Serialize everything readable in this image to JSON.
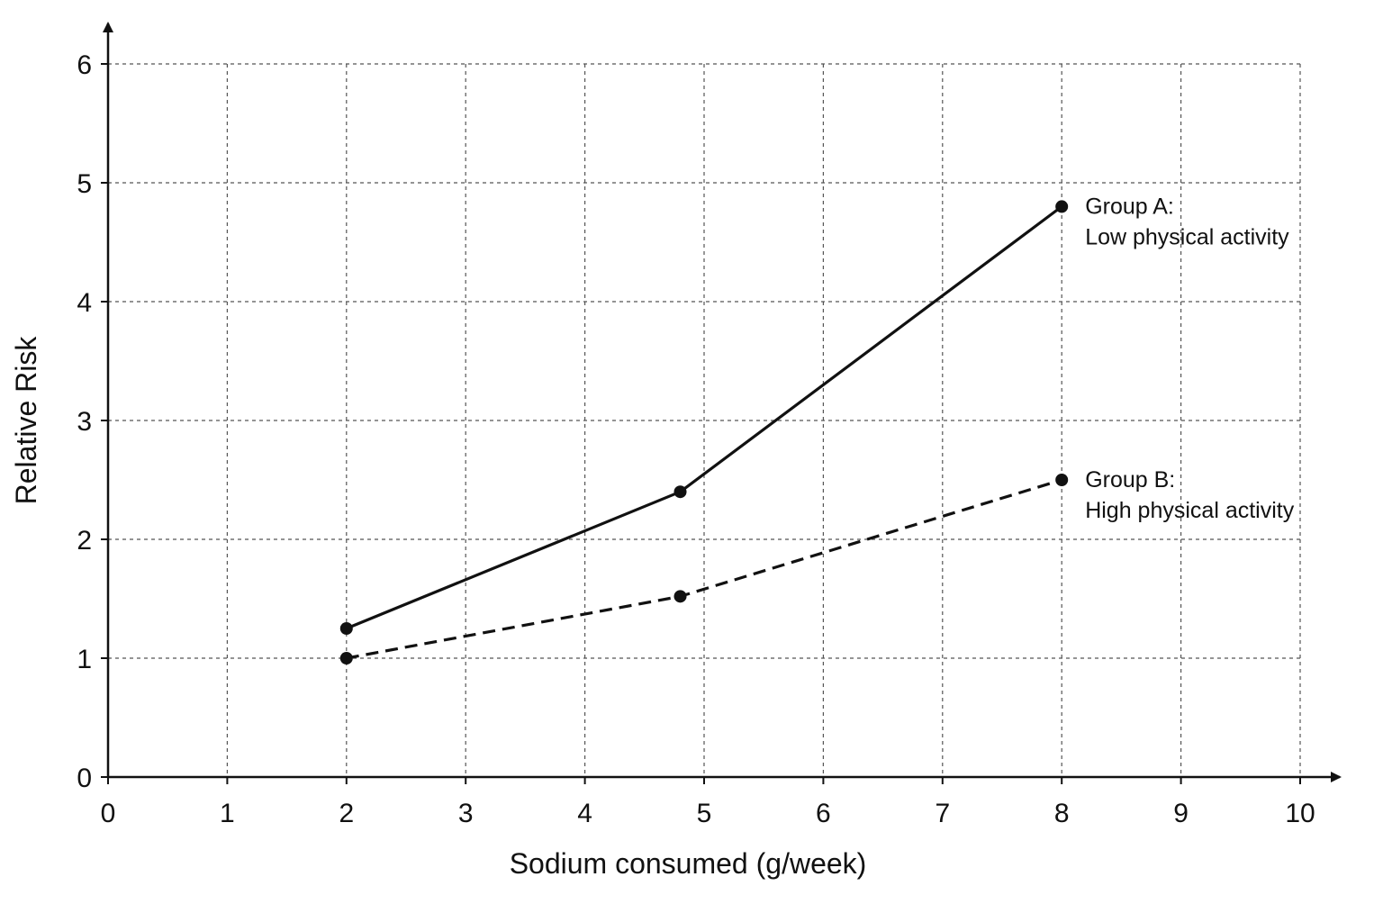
{
  "chart_data": {
    "type": "line",
    "xlabel": "Sodium consumed (g/week)",
    "ylabel": "Relative Risk",
    "xlim": [
      0,
      10
    ],
    "ylim": [
      0,
      6
    ],
    "x_ticks": [
      "0",
      "1",
      "2",
      "3",
      "4",
      "5",
      "6",
      "7",
      "8",
      "9",
      "10"
    ],
    "y_ticks": [
      "0",
      "1",
      "2",
      "3",
      "4",
      "5",
      "6"
    ],
    "grid": true,
    "series": [
      {
        "name_line1": "Group A:",
        "name_line2": "Low physical activity",
        "line_style": "solid",
        "x": [
          2,
          4.8,
          8
        ],
        "y": [
          1.25,
          2.4,
          4.8
        ]
      },
      {
        "name_line1": "Group B:",
        "name_line2": "High physical activity",
        "line_style": "dashed",
        "x": [
          2,
          4.8,
          8
        ],
        "y": [
          1.0,
          1.52,
          2.5
        ]
      }
    ],
    "colors": {
      "line": "#111111",
      "grid": "#555555"
    }
  }
}
